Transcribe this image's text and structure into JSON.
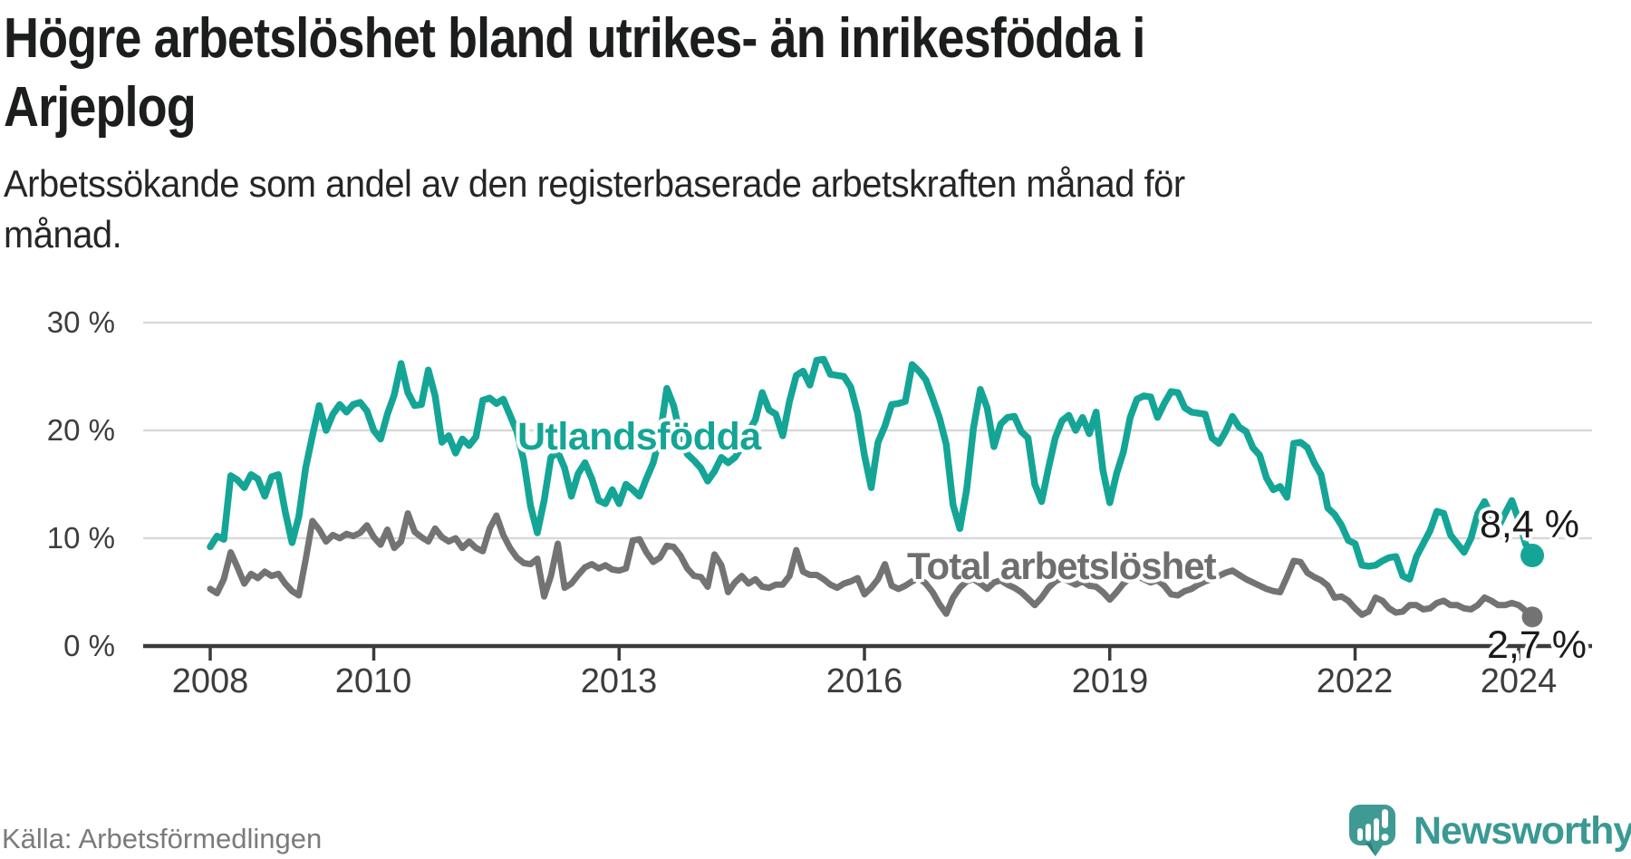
{
  "header": {
    "title_lines": [
      "Högre arbetslöshet bland utrikes- än inrikesfödda i",
      "Arjeplog"
    ],
    "subtitle_lines": [
      "Arbetssökande som andel av den registerbaserade arbetskraften månad för",
      "månad."
    ]
  },
  "chart_data": {
    "type": "line",
    "title": "Högre arbetslöshet bland utrikes- än inrikesfödda i Arjeplog",
    "subtitle": "Arbetssökande som andel av den registerbaserade arbetskraften månad för månad.",
    "x_unit": "month",
    "x_start": "2008-01",
    "x_end": "2024-03",
    "xlabel": "",
    "ylabel": "",
    "ylim": [
      0,
      30
    ],
    "grid": "horizontal",
    "legend_position": "inline",
    "yticks": [
      {
        "value": 0,
        "label": "0 %"
      },
      {
        "value": 10,
        "label": "10 %"
      },
      {
        "value": 20,
        "label": "20 %"
      },
      {
        "value": 30,
        "label": "30 %"
      }
    ],
    "xticks": [
      {
        "value": 2008,
        "label": "2008"
      },
      {
        "value": 2010,
        "label": "2010"
      },
      {
        "value": 2013,
        "label": "2013"
      },
      {
        "value": 2016,
        "label": "2016"
      },
      {
        "value": 2019,
        "label": "2019"
      },
      {
        "value": 2022,
        "label": "2022"
      },
      {
        "value": 2024,
        "label": "2024"
      }
    ],
    "series": [
      {
        "name": "Utlandsfödda",
        "color": "#14a596",
        "end_label": "8,4 %",
        "end_value": 8.4,
        "values": [
          9.2,
          10.2,
          9.9,
          15.8,
          15.4,
          14.7,
          15.9,
          15.5,
          13.9,
          15.7,
          15.9,
          12.5,
          9.6,
          12.0,
          16.5,
          19.5,
          22.3,
          20.0,
          21.5,
          22.4,
          21.7,
          22.4,
          22.6,
          21.8,
          20.0,
          19.2,
          21.5,
          23.3,
          26.2,
          23.5,
          22.3,
          22.4,
          25.6,
          23.2,
          18.9,
          19.5,
          17.9,
          19.2,
          18.6,
          19.4,
          22.8,
          23.0,
          22.5,
          22.9,
          21.4,
          19.9,
          17.2,
          13.0,
          10.5,
          13.5,
          17.5,
          18.0,
          16.5,
          13.9,
          16.0,
          17.0,
          15.5,
          13.5,
          13.2,
          14.5,
          13.2,
          15.0,
          14.5,
          13.9,
          15.5,
          17.0,
          19.5,
          23.9,
          22.3,
          19.5,
          17.8,
          17.2,
          16.5,
          15.3,
          16.2,
          17.5,
          17.0,
          17.5,
          18.5,
          19.9,
          21.0,
          23.5,
          21.9,
          21.5,
          19.5,
          22.7,
          25.1,
          25.5,
          24.2,
          26.5,
          26.6,
          25.2,
          25.1,
          25.0,
          24.0,
          21.6,
          17.7,
          14.7,
          18.9,
          20.4,
          22.4,
          22.5,
          22.7,
          26.1,
          25.5,
          24.7,
          23.0,
          21.2,
          18.7,
          13.1,
          10.9,
          14.5,
          20.2,
          23.8,
          22.1,
          18.5,
          20.6,
          21.2,
          21.3,
          19.9,
          19.3,
          15.0,
          13.4,
          16.5,
          19.3,
          20.9,
          21.4,
          20.0,
          21.2,
          19.7,
          21.7,
          16.3,
          13.3,
          16.0,
          18.0,
          21.2,
          22.9,
          23.2,
          23.1,
          21.2,
          22.5,
          23.6,
          23.5,
          22.1,
          21.7,
          21.6,
          21.5,
          19.3,
          18.8,
          19.9,
          21.3,
          20.3,
          19.9,
          18.4,
          17.7,
          15.6,
          14.5,
          14.8,
          13.8,
          18.8,
          18.9,
          18.4,
          17.0,
          15.9,
          12.8,
          12.2,
          11.2,
          9.8,
          9.5,
          7.5,
          7.4,
          7.5,
          7.9,
          8.2,
          8.3,
          6.5,
          6.2,
          8.3,
          9.5,
          10.7,
          12.5,
          12.3,
          10.3,
          9.5,
          8.7,
          10.0,
          12.3,
          13.4,
          12.0,
          11.0,
          12.3,
          13.5,
          11.7,
          9.5,
          8.4
        ]
      },
      {
        "name": "Total arbetslöshet",
        "color": "#737373",
        "end_label": "2,7 %",
        "end_value": 2.7,
        "values": [
          5.3,
          4.9,
          6.2,
          8.7,
          7.3,
          5.8,
          6.7,
          6.3,
          6.9,
          6.5,
          6.7,
          5.8,
          5.1,
          4.7,
          8.0,
          11.6,
          10.8,
          9.7,
          10.3,
          10.0,
          10.4,
          10.2,
          10.5,
          11.2,
          10.1,
          9.4,
          10.8,
          9.1,
          9.7,
          12.3,
          10.6,
          10.1,
          9.7,
          10.9,
          10.1,
          9.7,
          10.0,
          9.1,
          9.7,
          9.1,
          8.8,
          10.9,
          12.1,
          10.3,
          9.1,
          8.2,
          7.7,
          7.6,
          8.1,
          4.6,
          6.5,
          9.5,
          5.4,
          5.8,
          6.6,
          7.3,
          7.6,
          7.2,
          7.5,
          7.1,
          7.0,
          7.2,
          9.8,
          9.9,
          8.7,
          7.8,
          8.2,
          9.3,
          9.2,
          8.4,
          7.2,
          6.5,
          6.4,
          5.5,
          8.5,
          7.5,
          5.0,
          5.9,
          6.5,
          5.8,
          6.2,
          5.5,
          5.4,
          5.7,
          5.7,
          6.5,
          8.9,
          6.9,
          6.6,
          6.6,
          6.2,
          5.7,
          5.4,
          5.8,
          6.0,
          6.3,
          4.8,
          5.4,
          6.2,
          7.6,
          5.6,
          5.3,
          5.6,
          6.0,
          6.3,
          5.8,
          5.0,
          3.9,
          3.0,
          4.5,
          5.4,
          6.0,
          6.2,
          5.8,
          5.3,
          5.9,
          6.1,
          5.7,
          5.4,
          5.0,
          4.4,
          3.8,
          4.5,
          5.4,
          6.0,
          6.3,
          6.0,
          5.7,
          6.0,
          5.6,
          5.5,
          5.0,
          4.3,
          5.0,
          5.8,
          6.3,
          6.5,
          6.2,
          5.9,
          6.1,
          5.6,
          4.8,
          4.7,
          5.1,
          5.3,
          5.7,
          6.0,
          6.2,
          6.5,
          6.8,
          7.0,
          6.6,
          6.2,
          5.9,
          5.6,
          5.3,
          5.1,
          5.0,
          6.4,
          7.9,
          7.8,
          6.8,
          6.4,
          6.1,
          5.6,
          4.5,
          4.6,
          4.2,
          3.5,
          2.9,
          3.2,
          4.5,
          4.2,
          3.5,
          3.1,
          3.2,
          3.8,
          3.8,
          3.4,
          3.5,
          4.0,
          4.2,
          3.8,
          3.8,
          3.5,
          3.4,
          3.8,
          4.5,
          4.2,
          3.8,
          3.8,
          4.0,
          3.8,
          3.3,
          2.7
        ]
      }
    ]
  },
  "footer": {
    "source": "Källa: Arbetsförmedlingen",
    "brand": "Newsworthy"
  },
  "colors": {
    "foreign_line": "#14a596",
    "total_line": "#737373",
    "gridline": "#d9d9d9",
    "axis": "#3a3a3a",
    "value_label": "#1a1a1a",
    "brand_teal": "#3a9a93"
  }
}
